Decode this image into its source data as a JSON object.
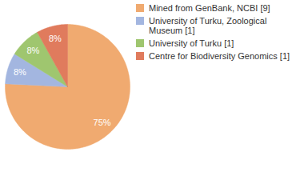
{
  "chart_data": {
    "type": "pie",
    "categories": [
      "Mined from GenBank, NCBI [9]",
      "University of Turku, Zoological Museum [1]",
      "University of Turku [1]",
      "Centre for Biodiversity Genomics [1]"
    ],
    "values": [
      75,
      8,
      8,
      8
    ],
    "value_labels": [
      "75%",
      "8%",
      "8%",
      "8%"
    ],
    "colors": [
      "#f0aa70",
      "#a3b6e0",
      "#9fc66f",
      "#e07b5d"
    ],
    "data_labels": true,
    "legend": "right"
  }
}
